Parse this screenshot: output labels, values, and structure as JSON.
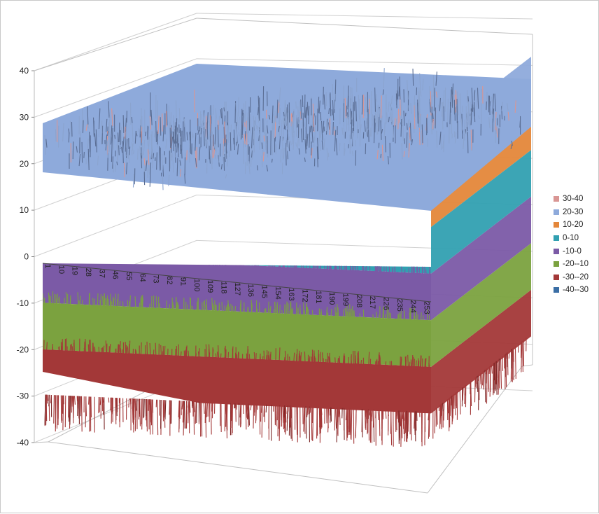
{
  "chart_data": {
    "type": "surface",
    "title": "",
    "xlabel": "",
    "ylabel": "",
    "zlim": [
      -40,
      40
    ],
    "z_ticks": [
      "40",
      "30",
      "20",
      "10",
      "0",
      "-10",
      "-20",
      "-30",
      "-40"
    ],
    "x_tick_labels": [
      "1",
      "10",
      "19",
      "28",
      "37",
      "46",
      "55",
      "64",
      "73",
      "82",
      "91",
      "100",
      "109",
      "118",
      "127",
      "136",
      "145",
      "154",
      "163",
      "172",
      "181",
      "190",
      "199",
      "208",
      "217",
      "226",
      "235",
      "244",
      "253"
    ],
    "x_range": [
      1,
      256
    ],
    "grid": true,
    "legend_position": "right",
    "series": [
      {
        "name": "30-40",
        "range": [
          30,
          40
        ],
        "color": "#d99694"
      },
      {
        "name": "20-30",
        "range": [
          20,
          30
        ],
        "color": "#8eaadb"
      },
      {
        "name": "10-20",
        "range": [
          10,
          20
        ],
        "color": "#e4873a"
      },
      {
        "name": "0-10",
        "range": [
          0,
          10
        ],
        "color": "#31a0b1"
      },
      {
        "name": "-10-0",
        "range": [
          -10,
          0
        ],
        "color": "#7b5aa6"
      },
      {
        "name": "-20--10",
        "range": [
          -20,
          -10
        ],
        "color": "#7ba23f"
      },
      {
        "name": "-30--20",
        "range": [
          -30,
          -20
        ],
        "color": "#a33838"
      },
      {
        "name": "-40--30",
        "range": [
          -40,
          -30
        ],
        "color": "#3b6ea5"
      }
    ]
  }
}
